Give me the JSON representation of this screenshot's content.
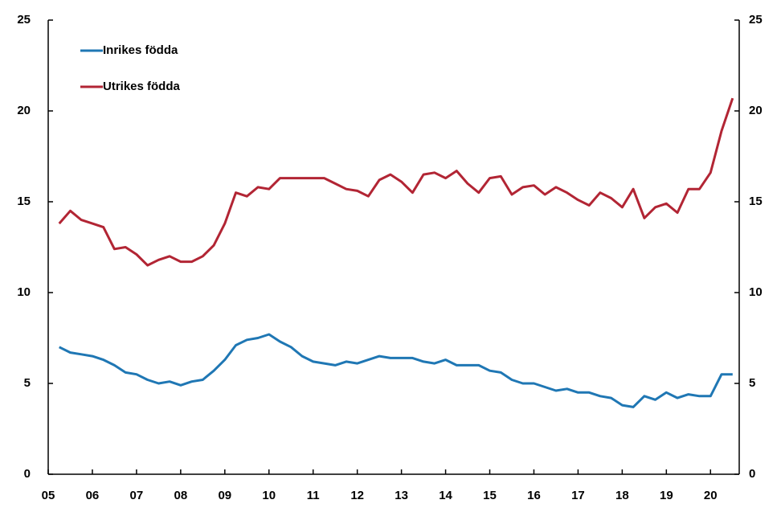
{
  "chart_data": {
    "type": "line",
    "x": [
      5.25,
      5.5,
      5.75,
      6,
      6.25,
      6.5,
      6.75,
      7,
      7.25,
      7.5,
      7.75,
      8,
      8.25,
      8.5,
      8.75,
      9,
      9.25,
      9.5,
      9.75,
      10,
      10.25,
      10.5,
      10.75,
      11,
      11.25,
      11.5,
      11.75,
      12,
      12.25,
      12.5,
      12.75,
      13,
      13.25,
      13.5,
      13.75,
      14,
      14.25,
      14.5,
      14.75,
      15,
      15.25,
      15.5,
      15.75,
      16,
      16.25,
      16.5,
      16.75,
      17,
      17.25,
      17.5,
      17.75,
      18,
      18.25,
      18.5,
      18.75,
      19,
      19.25,
      19.5,
      19.75,
      20,
      20.25,
      20.5
    ],
    "series": [
      {
        "name": "Inrikes födda",
        "color": "#1f77b4",
        "values": [
          7.0,
          6.7,
          6.6,
          6.5,
          6.3,
          6.0,
          5.6,
          5.5,
          5.2,
          5.0,
          5.1,
          4.9,
          5.1,
          5.2,
          5.7,
          6.3,
          7.1,
          7.4,
          7.5,
          7.7,
          7.3,
          7.0,
          6.5,
          6.2,
          6.1,
          6.0,
          6.2,
          6.1,
          6.3,
          6.5,
          6.4,
          6.4,
          6.4,
          6.2,
          6.1,
          6.3,
          6.0,
          6.0,
          6.0,
          5.7,
          5.6,
          5.2,
          5.0,
          5.0,
          4.8,
          4.6,
          4.7,
          4.5,
          4.5,
          4.3,
          4.2,
          3.8,
          3.7,
          4.3,
          4.1,
          4.5,
          4.2,
          4.4,
          4.3,
          4.3,
          5.5,
          5.5
        ]
      },
      {
        "name": "Utrikes födda",
        "color": "#b22534",
        "values": [
          13.8,
          14.5,
          14.0,
          13.8,
          13.6,
          12.4,
          12.5,
          12.1,
          11.5,
          11.8,
          12.0,
          11.7,
          11.7,
          12.0,
          12.6,
          13.8,
          15.5,
          15.3,
          15.8,
          15.7,
          16.3,
          16.3,
          16.3,
          16.3,
          16.3,
          16.0,
          15.7,
          15.6,
          15.3,
          16.2,
          16.5,
          16.1,
          15.5,
          16.5,
          16.6,
          16.3,
          16.7,
          16.0,
          15.5,
          16.3,
          16.4,
          15.4,
          15.8,
          15.9,
          15.4,
          15.8,
          15.5,
          15.1,
          14.8,
          15.5,
          15.2,
          14.7,
          15.7,
          14.1,
          14.7,
          14.9,
          14.4,
          15.7,
          15.7,
          16.6,
          18.9,
          20.7
        ]
      }
    ],
    "xlim": [
      5,
      20.65
    ],
    "xticks": [
      {
        "value": 5,
        "label": "05"
      },
      {
        "value": 6,
        "label": "06"
      },
      {
        "value": 7,
        "label": "07"
      },
      {
        "value": 8,
        "label": "08"
      },
      {
        "value": 9,
        "label": "09"
      },
      10,
      11,
      12,
      13,
      14,
      15,
      16,
      17,
      18,
      19,
      20
    ],
    "ylim": [
      0,
      25
    ],
    "yticks": [
      0,
      5,
      10,
      15,
      20,
      25
    ],
    "y2lim": [
      0,
      25
    ],
    "y2ticks": [
      0,
      5,
      10,
      15,
      20,
      25
    ],
    "grid": false,
    "legend": "upper left"
  }
}
